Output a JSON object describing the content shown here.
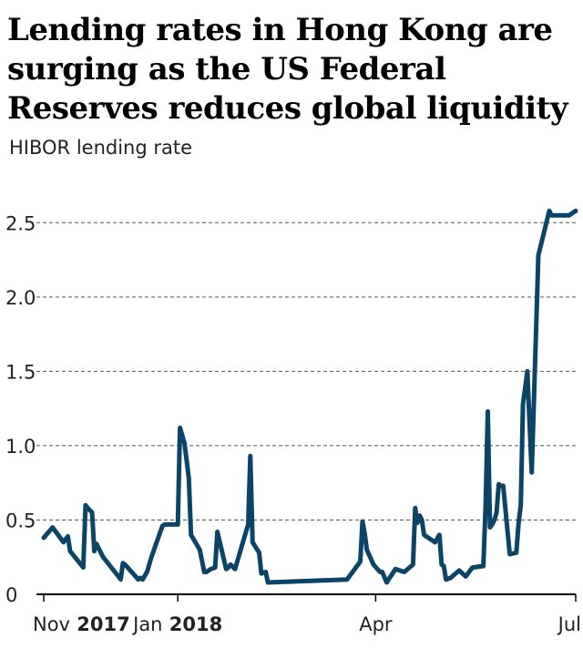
{
  "title": "Lending rates in Hong Kong are surging as the US Federal Reserves reduces global liquidity",
  "subtitle": "HIBOR lending rate",
  "colors": {
    "line": "#0b4466",
    "grid": "#555555",
    "axis": "#000000"
  },
  "chart_data": {
    "type": "line",
    "title": "Lending rates in Hong Kong are surging as the US Federal Reserves reduces global liquidity",
    "subtitle": "HIBOR lending rate",
    "xlabel": "",
    "ylabel": "",
    "ylim": [
      0,
      2.6
    ],
    "y_ticks": [
      0,
      0.5,
      1.0,
      1.5,
      2.0,
      2.5
    ],
    "y_tick_labels": [
      "0",
      "0.5",
      "1.0",
      "1.5",
      "2.0",
      "2.5"
    ],
    "x_tick_labels": [
      {
        "date": "2017-11-01",
        "month": "Nov",
        "year": "2017"
      },
      {
        "date": "2018-01-01",
        "month": "Jan",
        "year": "2018"
      },
      {
        "date": "2018-04-01",
        "month": "Apr",
        "year": ""
      },
      {
        "date": "2018-07-01",
        "month": "Jul",
        "year": ""
      }
    ],
    "xlim": [
      "2017-11-01",
      "2018-07-01"
    ],
    "grid": true,
    "series": [
      {
        "x": [
          "2017-11-01",
          "2017-11-05",
          "2017-11-10",
          "2017-11-12",
          "2017-11-13",
          "2017-11-19",
          "2017-11-20",
          "2017-11-21",
          "2017-11-23",
          "2017-11-24",
          "2017-11-25",
          "2017-11-28",
          "2017-12-05",
          "2017-12-06",
          "2017-12-07",
          "2017-12-08",
          "2017-12-14",
          "2017-12-15",
          "2017-12-16",
          "2017-12-18",
          "2017-12-19",
          "2017-12-20",
          "2017-12-25",
          "2017-12-26",
          "2018-01-01",
          "2018-01-02",
          "2018-01-04",
          "2018-01-05",
          "2018-01-06",
          "2018-01-07",
          "2018-01-11",
          "2018-01-13",
          "2018-01-14",
          "2018-01-15",
          "2018-01-16",
          "2018-01-18",
          "2018-01-19",
          "2018-01-23",
          "2018-01-24",
          "2018-01-25",
          "2018-01-27",
          "2018-02-02",
          "2018-02-03",
          "2018-02-04",
          "2018-02-07",
          "2018-02-08",
          "2018-02-10",
          "2018-02-11",
          "2018-03-19",
          "2018-03-25",
          "2018-03-26",
          "2018-03-27",
          "2018-03-28",
          "2018-03-31",
          "2018-04-03",
          "2018-04-04",
          "2018-04-06",
          "2018-04-10",
          "2018-04-14",
          "2018-04-18",
          "2018-04-19",
          "2018-04-20",
          "2018-04-21",
          "2018-04-22",
          "2018-04-23",
          "2018-04-28",
          "2018-04-30",
          "2018-05-01",
          "2018-05-02",
          "2018-05-03",
          "2018-05-05",
          "2018-05-09",
          "2018-05-12",
          "2018-05-15",
          "2018-05-20",
          "2018-05-21",
          "2018-05-22",
          "2018-05-23",
          "2018-05-24",
          "2018-05-25",
          "2018-05-26",
          "2018-05-27",
          "2018-05-28",
          "2018-05-29",
          "2018-06-01",
          "2018-06-04",
          "2018-06-05",
          "2018-06-06",
          "2018-06-07",
          "2018-06-09",
          "2018-06-11",
          "2018-06-14",
          "2018-06-18",
          "2018-06-19",
          "2018-06-20",
          "2018-06-21",
          "2018-06-22",
          "2018-06-23",
          "2018-06-24",
          "2018-06-25",
          "2018-06-26",
          "2018-06-27",
          "2018-06-28",
          "2018-07-01"
        ],
        "values": [
          0.38,
          0.45,
          0.35,
          0.39,
          0.29,
          0.18,
          0.6,
          0.58,
          0.55,
          0.29,
          0.34,
          0.25,
          0.12,
          0.1,
          0.21,
          0.2,
          0.1,
          0.11,
          0.1,
          0.15,
          0.2,
          0.25,
          0.46,
          0.47,
          0.47,
          1.12,
          1.02,
          0.9,
          0.78,
          0.4,
          0.3,
          0.15,
          0.15,
          0.16,
          0.17,
          0.18,
          0.42,
          0.17,
          0.18,
          0.2,
          0.17,
          0.47,
          0.93,
          0.35,
          0.28,
          0.14,
          0.15,
          0.08,
          0.1,
          0.22,
          0.49,
          0.41,
          0.3,
          0.2,
          0.15,
          0.15,
          0.08,
          0.17,
          0.15,
          0.2,
          0.58,
          0.48,
          0.53,
          0.5,
          0.4,
          0.35,
          0.4,
          0.2,
          0.19,
          0.1,
          0.11,
          0.16,
          0.12,
          0.18,
          0.19,
          0.6,
          1.23,
          0.45,
          0.47,
          0.5,
          0.55,
          0.74,
          0.73,
          0.73,
          0.27,
          0.28,
          0.48,
          0.6,
          1.28,
          1.5,
          0.82,
          2.28,
          2.52,
          2.58,
          2.55,
          2.55,
          2.55,
          2.55,
          2.55,
          2.55,
          2.55,
          2.55,
          2.55,
          2.58
        ]
      }
    ]
  }
}
